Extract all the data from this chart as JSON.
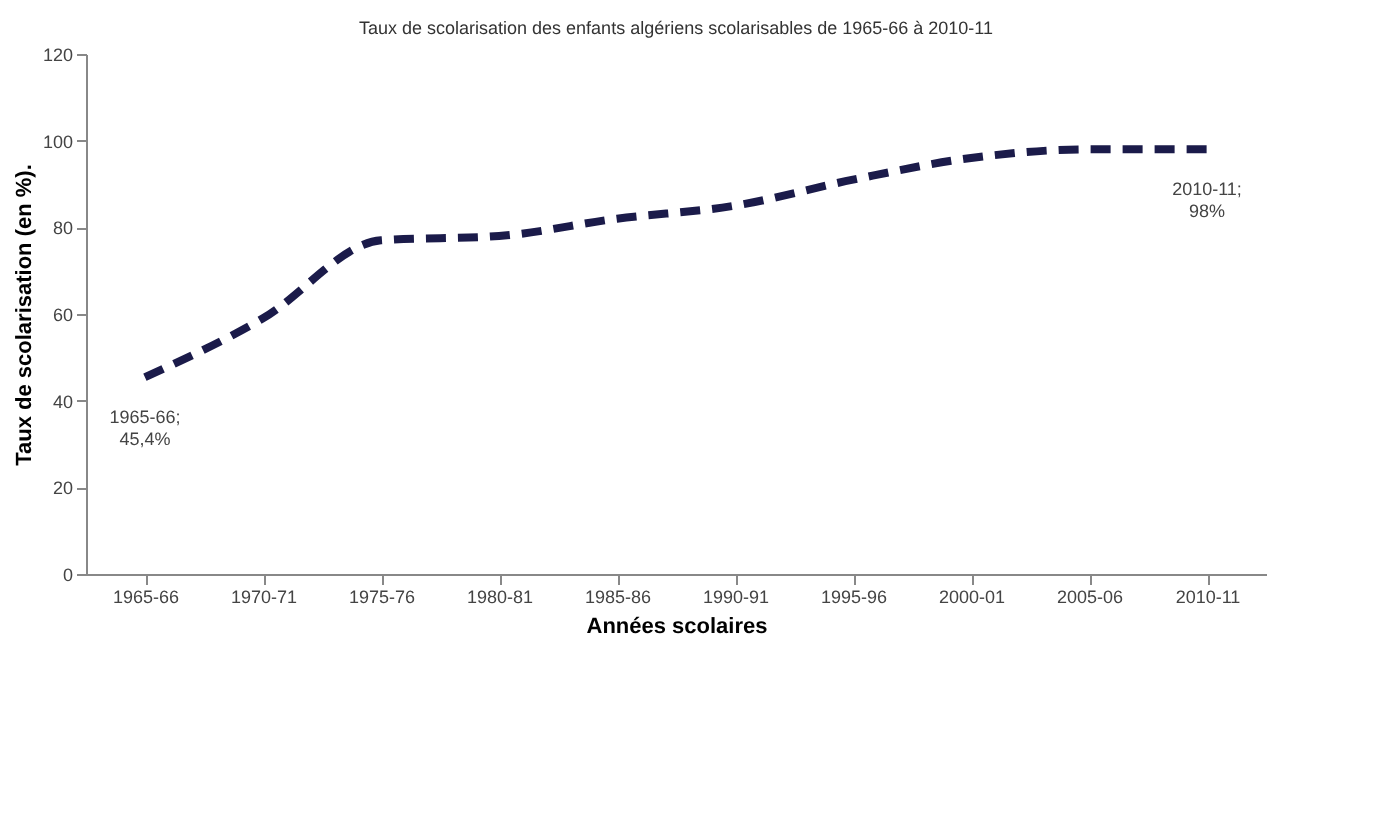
{
  "chart_data": {
    "type": "line",
    "title": "Taux de scolarisation des enfants algériens scolarisables de 1965-66 à 2010-11",
    "xlabel": "Années scolaires",
    "ylabel": "Taux de scolarisation (en %).",
    "categories": [
      "1965-66",
      "1970-71",
      "1975-76",
      "1980-81",
      "1985-86",
      "1990-91",
      "1995-96",
      "2000-01",
      "2005-06",
      "2010-11"
    ],
    "series": [
      {
        "color": "#1b1b4a",
        "values": [
          45.4,
          59,
          77,
          78,
          82,
          85,
          91,
          96,
          98,
          98
        ]
      }
    ],
    "ylim": [
      0,
      120
    ],
    "yticks": [
      0,
      20,
      40,
      60,
      80,
      100,
      120
    ],
    "grid": false,
    "marker": "none",
    "line_style": "dashed",
    "annotations": [
      {
        "text": "1965-66; 45,4%",
        "x": "1965-66",
        "y": 45.4
      },
      {
        "text": "2010-11; 98%",
        "x": "2010-11",
        "y": 98
      }
    ]
  }
}
